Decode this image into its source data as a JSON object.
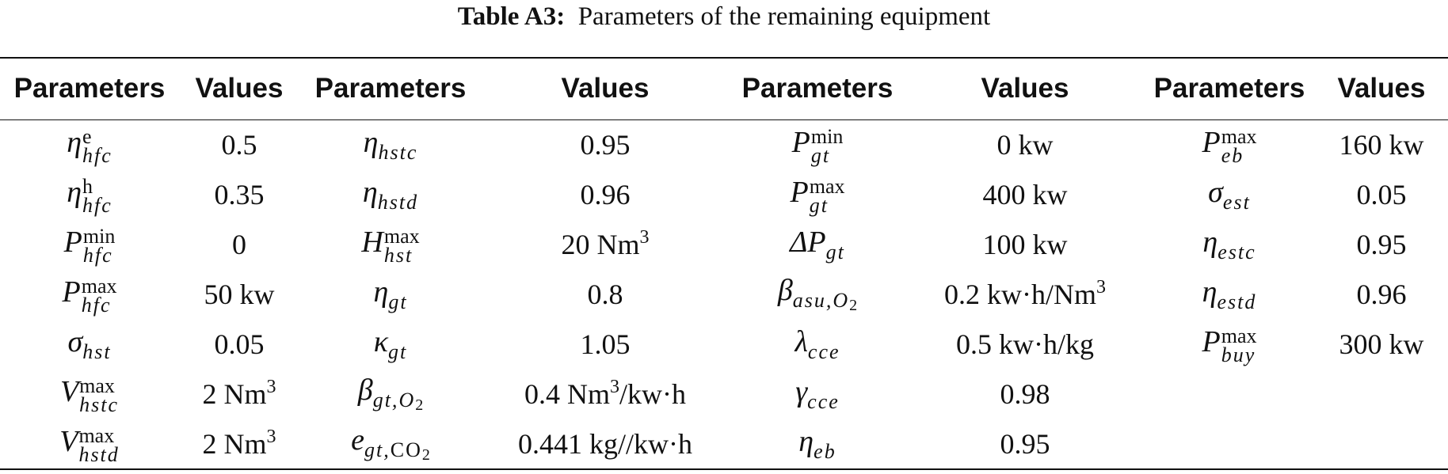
{
  "caption": {
    "label": "Table A3:",
    "text": "Parameters of the remaining equipment"
  },
  "headers": [
    "Parameters",
    "Values",
    "Parameters",
    "Values",
    "Parameters",
    "Values",
    "Parameters",
    "Values"
  ],
  "rows": [
    [
      {
        "base": "η",
        "sup": "e",
        "sub": "hfc"
      },
      {
        "value": "0.5"
      },
      {
        "base": "η",
        "sub": "hstc"
      },
      {
        "value": "0.95"
      },
      {
        "base": "P",
        "sup": "min",
        "sub": "gt"
      },
      {
        "value": "0 kw"
      },
      {
        "base": "P",
        "sup": "max",
        "sub": "eb"
      },
      {
        "value": "160 kw"
      }
    ],
    [
      {
        "base": "η",
        "sup": "h",
        "sub": "hfc"
      },
      {
        "value": "0.35"
      },
      {
        "base": "η",
        "sub": "hstd"
      },
      {
        "value": "0.96"
      },
      {
        "base": "P",
        "sup": "max",
        "sub": "gt"
      },
      {
        "value": "400 kw"
      },
      {
        "base": "σ",
        "sub": "est"
      },
      {
        "value": "0.05"
      }
    ],
    [
      {
        "base": "P",
        "sup": "min",
        "sub": "hfc"
      },
      {
        "value": "0"
      },
      {
        "base": "H",
        "sup": "max",
        "sub": "hst"
      },
      {
        "value": "20 Nm",
        "sup": "3"
      },
      {
        "base": "ΔP",
        "sub": "gt"
      },
      {
        "value": "100 kw"
      },
      {
        "base": "η",
        "sub": "estc"
      },
      {
        "value": "0.95"
      }
    ],
    [
      {
        "base": "P",
        "sup": "max",
        "sub": "hfc"
      },
      {
        "value": "50 kw"
      },
      {
        "base": "η",
        "sub": "gt"
      },
      {
        "value": "0.8"
      },
      {
        "base": "β",
        "sub": "asu,",
        "sub2": "O",
        "sub3": "2"
      },
      {
        "value": "0.2 kw·h/Nm",
        "sup": "3"
      },
      {
        "base": "η",
        "sub": "estd"
      },
      {
        "value": "0.96"
      }
    ],
    [
      {
        "base": "σ",
        "sub": "hst"
      },
      {
        "value": "0.05"
      },
      {
        "base": "κ",
        "sub": "gt"
      },
      {
        "value": "1.05"
      },
      {
        "base": "λ",
        "sub": "cce"
      },
      {
        "value": "0.5 kw·h/kg"
      },
      {
        "base": "P",
        "sup": "max",
        "sub": "buy"
      },
      {
        "value": "300 kw"
      }
    ],
    [
      {
        "base": "V",
        "sup": "max",
        "sub": "hstc"
      },
      {
        "value": "2 Nm",
        "sup": "3"
      },
      {
        "base": "β",
        "sub": "gt,",
        "sub2": "O",
        "sub3": "2"
      },
      {
        "value": "0.4 Nm",
        "sup": "3",
        "tail": "/kw·h"
      },
      {
        "base": "γ",
        "sub": "cce"
      },
      {
        "value": "0.98"
      },
      {},
      {}
    ],
    [
      {
        "base": "V",
        "sup": "max",
        "sub": "hstd"
      },
      {
        "value": "2 Nm",
        "sup": "3"
      },
      {
        "base": "e",
        "sub": "gt,",
        "sub2": "CO",
        "sub3": "2"
      },
      {
        "value": "0.441 kg//kw·h"
      },
      {
        "base": "η",
        "sub": "eb"
      },
      {
        "value": "0.95"
      },
      {},
      {}
    ]
  ]
}
